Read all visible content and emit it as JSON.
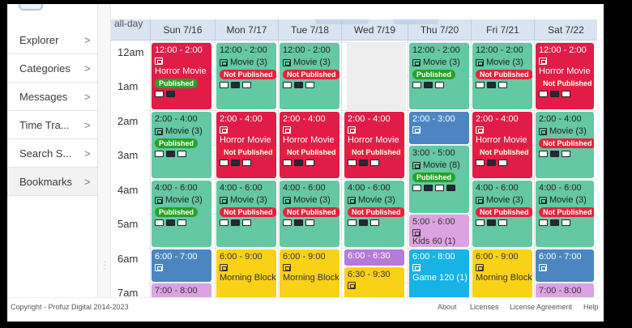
{
  "sidebar": {
    "items": [
      {
        "label": "Explorer"
      },
      {
        "label": "Categories"
      },
      {
        "label": "Messages"
      },
      {
        "label": "Time Tra..."
      },
      {
        "label": "Search S..."
      },
      {
        "label": "Bookmarks"
      }
    ],
    "chevron": ">"
  },
  "calendar": {
    "allday_label": "all-day",
    "days": [
      "Sun 7/16",
      "Mon 7/17",
      "Tue 7/18",
      "Wed 7/19",
      "Thu 7/20",
      "Fri 7/21",
      "Sat 7/22"
    ],
    "hours": [
      "12am",
      "1am",
      "2am",
      "3am",
      "4am",
      "5am",
      "6am",
      "7am"
    ],
    "events": {
      "sun_1": {
        "time": "12:00 - 2:00",
        "title": "Horror Movie",
        "status": "Published"
      },
      "mon_1": {
        "time": "12:00 - 2:00",
        "title": "Movie (3)",
        "status": "Not Published"
      },
      "tue_1": {
        "time": "12:00 - 2:00",
        "title": "Movie (3)",
        "status": "Not Published"
      },
      "thu_1": {
        "time": "12:00 - 2:00",
        "title": "Movie (3)",
        "status": "Published"
      },
      "fri_1": {
        "time": "12:00 - 2:00",
        "title": "Movie (3)",
        "status": "Not Published"
      },
      "sat_1": {
        "time": "12:00 - 2:00",
        "title": "Horror Movie",
        "status": "Not Published"
      },
      "sun_2": {
        "time": "2:00 - 4:00",
        "title": "Movie (3)",
        "status": "Published"
      },
      "mon_2": {
        "time": "2:00 - 4:00",
        "title": "Horror Movie",
        "status": "Not Published"
      },
      "tue_2": {
        "time": "2:00 - 4:00",
        "title": "Horror Movie",
        "status": "Not Published"
      },
      "wed_2": {
        "time": "2:00 - 4:00",
        "title": "Horror Movie",
        "status": "Not Published"
      },
      "thu_2": {
        "time": "2:00 - 3:00"
      },
      "thu_3": {
        "time": "3:00 - 5:00",
        "title": "Movie (8)",
        "status": "Published"
      },
      "fri_2": {
        "time": "2:00 - 4:00",
        "title": "Horror Movie",
        "status": "Not Published"
      },
      "sat_2": {
        "time": "2:00 - 4:00",
        "title": "Movie (3)",
        "status": "Not Published"
      },
      "sun_3": {
        "time": "4:00 - 6:00",
        "title": "Movie (3)",
        "status": "Published"
      },
      "mon_3": {
        "time": "4:00 - 6:00",
        "title": "Movie (3)",
        "status": "Not Published"
      },
      "tue_3": {
        "time": "4:00 - 6:00",
        "title": "Movie (3)",
        "status": "Not Published"
      },
      "wed_3": {
        "time": "4:00 - 6:00",
        "title": "Movie (3)",
        "status": "Not Published"
      },
      "thu_4": {
        "time": "5:00 - 6:00",
        "title": "Kids 60 (1)"
      },
      "fri_3": {
        "time": "4:00 - 6:00",
        "title": "Movie (3)",
        "status": "Not Published"
      },
      "sat_3": {
        "time": "4:00 - 6:00",
        "title": "Movie (3)",
        "status": "Not Published"
      },
      "sun_4": {
        "time": "6:00 - 7:00"
      },
      "mon_4": {
        "time": "6:00 - 9:00",
        "title": "Morning Block"
      },
      "tue_4": {
        "time": "6:00 - 9:00",
        "title": "Morning Block"
      },
      "wed_4": {
        "time": "6:00 - 6:30"
      },
      "wed_5": {
        "time": "6:30 - 9:30"
      },
      "thu_5": {
        "time": "6:00 - 8:00",
        "title": "Game 120 (1)"
      },
      "fri_4": {
        "time": "6:00 - 9:00",
        "title": "Morning Block"
      },
      "sat_4": {
        "time": "6:00 - 7:00"
      },
      "sun_5": {
        "time": "7:00 - 8:00"
      },
      "sat_5": {
        "time": "7:00 - 8:00"
      }
    }
  },
  "footer": {
    "copyright": "Copyright - Profuz Digital 2014-2023",
    "links": [
      "About",
      "Licenses",
      "License Agreement",
      "Help"
    ]
  },
  "colors": {
    "red": "#e11d47",
    "green": "#64c8a4",
    "blue": "#4b86c2",
    "yellow": "#f9d117",
    "purple": "#b67ad8",
    "cyan": "#17b3e6",
    "pink": "#dba3e0",
    "published": "#27a127",
    "not_published": "#e8213b"
  }
}
